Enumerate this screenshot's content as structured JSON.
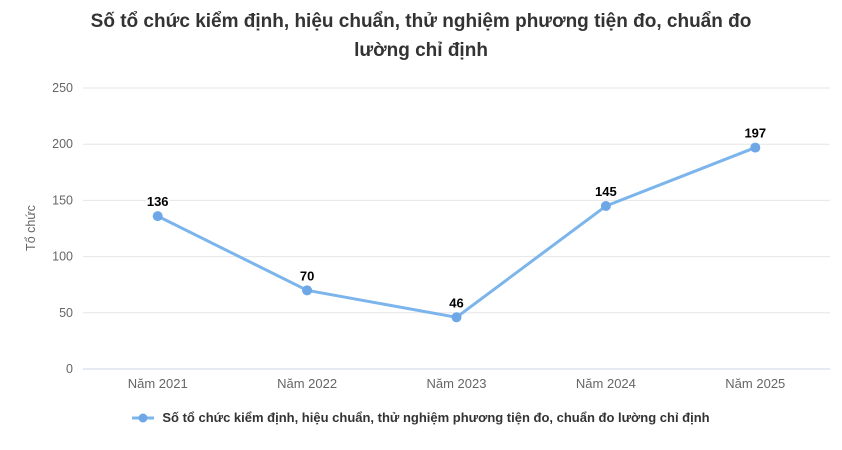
{
  "title": {
    "line1": "Số tổ chức kiểm định, hiệu chuẩn, thử nghiệm phương tiện đo, chuẩn đo",
    "line2": "lường chỉ định"
  },
  "legend": {
    "label": "Số tổ chức kiểm định, hiệu chuẩn, thử nghiệm phương tiện đo, chuẩn đo lường chỉ định",
    "marker": "line-dot-marker"
  },
  "colors": {
    "series_line": "#7cb5ec",
    "marker": "#6ea7e5",
    "grid": "#e6e6e6",
    "axis_line": "#ccd6eb",
    "tick_text": "#666666",
    "title_text": "#333333",
    "data_label_text": "#000000",
    "legend_text": "#333333",
    "background": "#ffffff"
  },
  "chart_data": {
    "type": "line",
    "title": "Số tổ chức kiểm định, hiệu chuẩn, thử nghiệm phương tiện đo, chuẩn đo lường chỉ định",
    "categories": [
      "Năm 2021",
      "Năm 2022",
      "Năm 2023",
      "Năm 2024",
      "Năm 2025"
    ],
    "series": [
      {
        "name": "Số tổ chức kiểm định, hiệu chuẩn, thử nghiệm phương tiện đo, chuẩn đo lường chỉ định",
        "values": [
          136,
          70,
          46,
          145,
          197
        ]
      }
    ],
    "data_labels": [
      136,
      70,
      46,
      145,
      197
    ],
    "xlabel": "",
    "ylabel": "Tổ chức",
    "ylim": [
      0,
      250
    ],
    "yticks": [
      0,
      50,
      100,
      150,
      200,
      250
    ],
    "grid": true,
    "legend_position": "bottom"
  }
}
